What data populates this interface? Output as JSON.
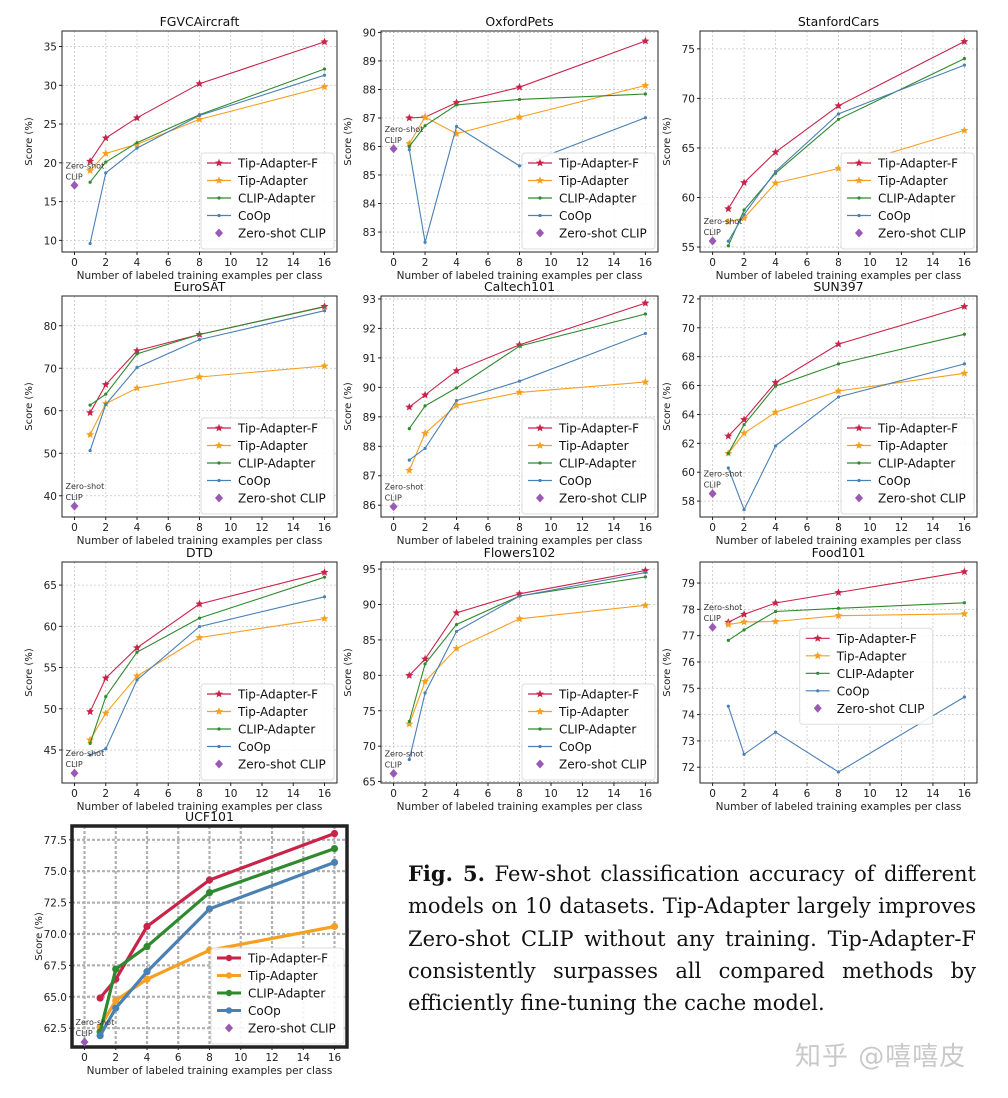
{
  "colors": {
    "Tip-Adapter-F": "#c9234a",
    "Tip-Adapter": "#f5a020",
    "CLIP-Adapter": "#2f8a2f",
    "CoOp": "#4b80b3",
    "Zero-shot CLIP": "#9b59b6"
  },
  "caption": {
    "label": "Fig. 5.",
    "text": "Few-shot classification accuracy of different models on 10 datasets. Tip-Adapter largely improves Zero-shot CLIP without any training. Tip-Adapter-F consistently surpasses all compared methods by efficiently fine-tuning the cache model."
  },
  "watermark": "知乎 @嘻嘻皮",
  "chart_data": [
    {
      "type": "line",
      "title": "FGVCAircraft",
      "xlabel": "Number of labeled training examples per class",
      "ylabel": "Score (%)",
      "xlim": [
        -0.8,
        16.8
      ],
      "ylim": [
        8.5,
        37
      ],
      "xticks": [
        0,
        2,
        4,
        6,
        8,
        10,
        12,
        14,
        16
      ],
      "yticks": [
        10,
        15,
        20,
        25,
        30,
        35
      ],
      "grid": true,
      "legend": "lower right",
      "annotation": [
        "Zero-shot",
        "CLIP"
      ],
      "x": [
        1,
        2,
        4,
        8,
        16
      ],
      "series": [
        {
          "name": "Tip-Adapter-F",
          "values": [
            20.2,
            23.2,
            25.8,
            30.2,
            35.6
          ]
        },
        {
          "name": "Tip-Adapter",
          "values": [
            19.0,
            21.2,
            22.4,
            25.6,
            29.8
          ]
        },
        {
          "name": "CLIP-Adapter",
          "values": [
            17.5,
            20.1,
            22.6,
            26.2,
            32.1
          ]
        },
        {
          "name": "CoOp",
          "values": [
            9.6,
            18.7,
            21.9,
            26.1,
            31.3
          ]
        }
      ],
      "zero_shot": {
        "name": "Zero-shot CLIP",
        "x": 0,
        "y": 17.1
      }
    },
    {
      "type": "line",
      "title": "OxfordPets",
      "xlabel": "Number of labeled training examples per class",
      "ylabel": "Score (%)",
      "xlim": [
        -0.8,
        16.8
      ],
      "ylim": [
        82.3,
        90.05
      ],
      "xticks": [
        0,
        2,
        4,
        6,
        8,
        10,
        12,
        14,
        16
      ],
      "yticks": [
        83,
        84,
        85,
        86,
        87,
        88,
        89,
        90
      ],
      "grid": true,
      "legend": "lower right",
      "annotation": [
        "Zero-shot",
        "CLIP"
      ],
      "x": [
        1,
        2,
        4,
        8,
        16
      ],
      "series": [
        {
          "name": "Tip-Adapter-F",
          "values": [
            87.0,
            87.03,
            87.54,
            88.08,
            89.7
          ]
        },
        {
          "name": "Tip-Adapter",
          "values": [
            86.1,
            87.03,
            86.45,
            87.03,
            88.14
          ]
        },
        {
          "name": "CLIP-Adapter",
          "values": [
            86.0,
            86.73,
            87.46,
            87.65,
            87.84
          ]
        },
        {
          "name": "CoOp",
          "values": [
            85.89,
            82.64,
            86.7,
            85.32,
            87.01
          ]
        }
      ],
      "zero_shot": {
        "name": "Zero-shot CLIP",
        "x": 0,
        "y": 85.92
      }
    },
    {
      "type": "line",
      "title": "StanfordCars",
      "xlabel": "Number of labeled training examples per class",
      "ylabel": "Score (%)",
      "xlim": [
        -0.8,
        16.8
      ],
      "ylim": [
        54.5,
        76.8
      ],
      "xticks": [
        0,
        2,
        4,
        6,
        8,
        10,
        12,
        14,
        16
      ],
      "yticks": [
        55,
        60,
        65,
        70,
        75
      ],
      "grid": true,
      "legend": "lower right",
      "annotation": [
        "Zero-shot",
        "CLIP"
      ],
      "x": [
        1,
        2,
        4,
        8,
        16
      ],
      "series": [
        {
          "name": "Tip-Adapter-F",
          "values": [
            58.86,
            61.5,
            64.57,
            69.25,
            75.74
          ]
        },
        {
          "name": "Tip-Adapter",
          "values": [
            57.54,
            57.93,
            61.45,
            62.93,
            66.77
          ]
        },
        {
          "name": "CLIP-Adapter",
          "values": [
            55.13,
            58.74,
            62.45,
            67.89,
            74.01
          ]
        },
        {
          "name": "CoOp",
          "values": [
            55.59,
            58.28,
            62.62,
            68.43,
            73.36
          ]
        }
      ],
      "zero_shot": {
        "name": "Zero-shot CLIP",
        "x": 0,
        "y": 55.61
      }
    },
    {
      "type": "line",
      "title": "EuroSAT",
      "xlabel": "Number of labeled training examples per class",
      "ylabel": "Score (%)",
      "xlim": [
        -0.8,
        16.8
      ],
      "ylim": [
        35,
        87
      ],
      "xticks": [
        0,
        2,
        4,
        6,
        8,
        10,
        12,
        14,
        16
      ],
      "yticks": [
        40,
        50,
        60,
        70,
        80
      ],
      "grid": true,
      "legend": "lower right",
      "annotation": [
        "Zero-shot",
        "CLIP"
      ],
      "x": [
        1,
        2,
        4,
        8,
        16
      ],
      "series": [
        {
          "name": "Tip-Adapter-F",
          "values": [
            59.53,
            66.15,
            74.12,
            77.93,
            84.54
          ]
        },
        {
          "name": "Tip-Adapter",
          "values": [
            54.38,
            61.68,
            65.32,
            67.95,
            70.54
          ]
        },
        {
          "name": "CLIP-Adapter",
          "values": [
            61.33,
            63.9,
            73.38,
            77.93,
            84.43
          ]
        },
        {
          "name": "CoOp",
          "values": [
            50.63,
            61.5,
            70.18,
            76.73,
            83.53
          ]
        }
      ],
      "zero_shot": {
        "name": "Zero-shot CLIP",
        "x": 0,
        "y": 37.56
      }
    },
    {
      "type": "line",
      "title": "Caltech101",
      "xlabel": "Number of labeled training examples per class",
      "ylabel": "Score (%)",
      "xlim": [
        -0.8,
        16.8
      ],
      "ylim": [
        85.6,
        93.1
      ],
      "xticks": [
        0,
        2,
        4,
        6,
        8,
        10,
        12,
        14,
        16
      ],
      "yticks": [
        86,
        87,
        88,
        89,
        90,
        91,
        92,
        93
      ],
      "grid": true,
      "legend": "lower right",
      "annotation": [
        "Zero-shot",
        "CLIP"
      ],
      "x": [
        1,
        2,
        4,
        8,
        16
      ],
      "series": [
        {
          "name": "Tip-Adapter-F",
          "values": [
            89.33,
            89.74,
            90.56,
            91.44,
            92.86
          ]
        },
        {
          "name": "Tip-Adapter",
          "values": [
            87.18,
            88.44,
            89.39,
            89.83,
            90.18
          ]
        },
        {
          "name": "CLIP-Adapter",
          "values": [
            88.6,
            89.37,
            89.98,
            91.4,
            92.49
          ]
        },
        {
          "name": "CoOp",
          "values": [
            87.53,
            87.93,
            89.55,
            90.21,
            91.83
          ]
        }
      ],
      "zero_shot": {
        "name": "Zero-shot CLIP",
        "x": 0,
        "y": 85.95
      }
    },
    {
      "type": "line",
      "title": "SUN397",
      "xlabel": "Number of labeled training examples per class",
      "ylabel": "Score (%)",
      "xlim": [
        -0.8,
        16.8
      ],
      "ylim": [
        56.9,
        72.2
      ],
      "xticks": [
        0,
        2,
        4,
        6,
        8,
        10,
        12,
        14,
        16
      ],
      "yticks": [
        58,
        60,
        62,
        64,
        66,
        68,
        70,
        72
      ],
      "grid": true,
      "legend": "lower right",
      "annotation": [
        "Zero-shot",
        "CLIP"
      ],
      "x": [
        1,
        2,
        4,
        8,
        16
      ],
      "series": [
        {
          "name": "Tip-Adapter-F",
          "values": [
            62.5,
            63.64,
            66.21,
            68.87,
            71.47
          ]
        },
        {
          "name": "Tip-Adapter",
          "values": [
            61.3,
            62.7,
            64.15,
            65.62,
            66.85
          ]
        },
        {
          "name": "CLIP-Adapter",
          "values": [
            61.3,
            63.29,
            65.96,
            67.5,
            69.55
          ]
        },
        {
          "name": "CoOp",
          "values": [
            60.29,
            57.41,
            61.82,
            65.21,
            67.5
          ]
        }
      ],
      "zero_shot": {
        "name": "Zero-shot CLIP",
        "x": 0,
        "y": 58.52
      }
    },
    {
      "type": "line",
      "title": "DTD",
      "xlabel": "Number of labeled training examples per class",
      "ylabel": "Score (%)",
      "xlim": [
        -0.8,
        16.8
      ],
      "ylim": [
        41,
        67.8
      ],
      "xticks": [
        0,
        2,
        4,
        6,
        8,
        10,
        12,
        14,
        16
      ],
      "yticks": [
        45,
        50,
        55,
        60,
        65
      ],
      "grid": true,
      "legend": "lower right",
      "annotation": [
        "Zero-shot",
        "CLIP"
      ],
      "x": [
        1,
        2,
        4,
        8,
        16
      ],
      "series": [
        {
          "name": "Tip-Adapter-F",
          "values": [
            49.65,
            53.72,
            57.39,
            62.71,
            66.55
          ]
        },
        {
          "name": "Tip-Adapter",
          "values": [
            46.22,
            49.47,
            53.96,
            58.63,
            60.93
          ]
        },
        {
          "name": "CLIP-Adapter",
          "values": [
            45.8,
            51.48,
            56.86,
            61.0,
            65.96
          ]
        },
        {
          "name": "CoOp",
          "values": [
            44.39,
            45.15,
            53.49,
            59.97,
            63.58
          ]
        }
      ],
      "zero_shot": {
        "name": "Zero-shot CLIP",
        "x": 0,
        "y": 42.2
      }
    },
    {
      "type": "line",
      "title": "Flowers102",
      "xlabel": "Number of labeled training examples per class",
      "ylabel": "Score (%)",
      "xlim": [
        -0.8,
        16.8
      ],
      "ylim": [
        64.8,
        96
      ],
      "xticks": [
        0,
        2,
        4,
        6,
        8,
        10,
        12,
        14,
        16
      ],
      "yticks": [
        65,
        70,
        75,
        80,
        85,
        90,
        95
      ],
      "grid": true,
      "legend": "lower right",
      "annotation": [
        "Zero-shot",
        "CLIP"
      ],
      "x": [
        1,
        2,
        4,
        8,
        16
      ],
      "series": [
        {
          "name": "Tip-Adapter-F",
          "values": [
            79.98,
            82.3,
            88.83,
            91.51,
            94.8
          ]
        },
        {
          "name": "Tip-Adapter",
          "values": [
            73.12,
            79.13,
            83.8,
            87.98,
            89.89
          ]
        },
        {
          "name": "CLIP-Adapter",
          "values": [
            73.49,
            81.61,
            87.17,
            91.2,
            93.9
          ]
        },
        {
          "name": "CoOp",
          "values": [
            68.12,
            77.51,
            86.2,
            91.18,
            94.51
          ]
        }
      ],
      "zero_shot": {
        "name": "Zero-shot CLIP",
        "x": 0,
        "y": 66.14
      }
    },
    {
      "type": "line",
      "title": "Food101",
      "xlabel": "Number of labeled training examples per class",
      "ylabel": "Score (%)",
      "xlim": [
        -0.8,
        16.8
      ],
      "ylim": [
        71.4,
        79.8
      ],
      "xticks": [
        0,
        2,
        4,
        6,
        8,
        10,
        12,
        14,
        16
      ],
      "yticks": [
        72,
        73,
        74,
        75,
        76,
        77,
        78,
        79
      ],
      "grid": true,
      "legend": "center",
      "annotation": [
        "Zero-shot",
        "CLIP"
      ],
      "x": [
        1,
        2,
        4,
        8,
        16
      ],
      "series": [
        {
          "name": "Tip-Adapter-F",
          "values": [
            77.51,
            77.81,
            78.24,
            78.64,
            79.43
          ]
        },
        {
          "name": "Tip-Adapter",
          "values": [
            77.42,
            77.52,
            77.54,
            77.76,
            77.83
          ]
        },
        {
          "name": "CLIP-Adapter",
          "values": [
            76.82,
            77.22,
            77.92,
            78.04,
            78.25
          ]
        },
        {
          "name": "CoOp",
          "values": [
            74.32,
            72.49,
            73.33,
            71.82,
            74.67
          ]
        }
      ],
      "zero_shot": {
        "name": "Zero-shot CLIP",
        "x": 0,
        "y": 77.32
      }
    },
    {
      "type": "line",
      "title": "UCF101",
      "xlabel": "Number of labeled training examples per class",
      "ylabel": "Score (%)",
      "xlim": [
        -0.8,
        16.8
      ],
      "ylim": [
        61.0,
        78.6
      ],
      "xticks": [
        0,
        2,
        4,
        6,
        8,
        10,
        12,
        14,
        16
      ],
      "yticks": [
        62.5,
        65.0,
        67.5,
        70.0,
        72.5,
        75.0,
        77.5
      ],
      "grid": true,
      "legend": "lower right",
      "annotation": [
        "Zero-shot",
        "CLIP"
      ],
      "x": [
        1,
        2,
        4,
        8,
        16
      ],
      "series": [
        {
          "name": "Tip-Adapter-F",
          "values": [
            64.9,
            66.4,
            70.6,
            74.3,
            78.0
          ]
        },
        {
          "name": "Tip-Adapter",
          "values": [
            62.6,
            64.7,
            66.4,
            68.7,
            70.6
          ]
        },
        {
          "name": "CLIP-Adapter",
          "values": [
            62.2,
            67.2,
            69.0,
            73.3,
            76.8
          ]
        },
        {
          "name": "CoOp",
          "values": [
            61.9,
            64.1,
            67.0,
            72.0,
            75.7
          ]
        }
      ],
      "zero_shot": {
        "name": "Zero-shot CLIP",
        "x": 0,
        "y": 61.4
      }
    }
  ]
}
